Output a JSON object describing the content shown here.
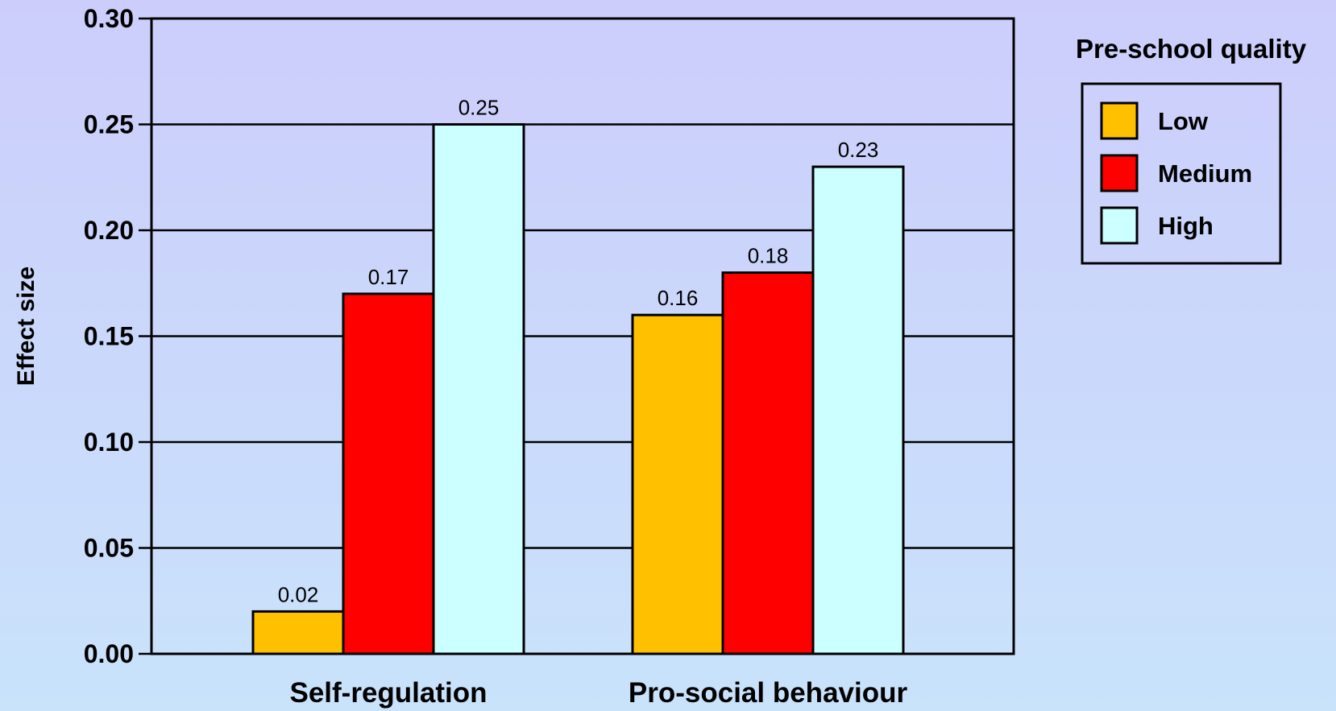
{
  "chart_data": {
    "type": "bar",
    "categories": [
      "Self-regulation",
      "Pro-social behaviour"
    ],
    "series": [
      {
        "name": "Low",
        "values": [
          0.02,
          0.16
        ],
        "labels": [
          "0.02",
          "0.16"
        ],
        "color": "#ffc000"
      },
      {
        "name": "Medium",
        "values": [
          0.17,
          0.18
        ],
        "labels": [
          "0.17",
          "0.18"
        ],
        "color": "#ff0000"
      },
      {
        "name": "High",
        "values": [
          0.25,
          0.23
        ],
        "labels": [
          "0.25",
          "0.23"
        ],
        "color": "#ccffff"
      }
    ],
    "ylabel": "Effect size",
    "ylim": [
      0,
      0.3
    ],
    "yticks": [
      "0.00",
      "0.05",
      "0.10",
      "0.15",
      "0.20",
      "0.25",
      "0.30"
    ],
    "legend_title": "Pre-school quality",
    "legend_position": "top-right",
    "grid": true
  }
}
